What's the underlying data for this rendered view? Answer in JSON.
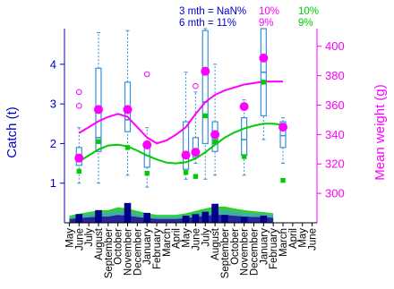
{
  "header": {
    "row1": {
      "label": "3 mth = NaN%",
      "p1": "10%",
      "p2": "10%"
    },
    "row2": {
      "label": "6 mth = 11%",
      "p1": "9%",
      "p2": "9%"
    }
  },
  "colors": {
    "blue": "#0000cc",
    "magenta": "#ff00ff",
    "green": "#00cc00",
    "box": "#3a8fd6",
    "navy": "#00008b",
    "teal": "#20a090"
  },
  "chart_data": {
    "type": "box+line",
    "x_labels": [
      "May",
      "June",
      "July",
      "August",
      "September",
      "October",
      "November",
      "December",
      "January",
      "February",
      "March",
      "April",
      "May",
      "June",
      "July",
      "August",
      "September",
      "October",
      "November",
      "December",
      "January",
      "February",
      "March",
      "April",
      "May",
      "June"
    ],
    "y_left": {
      "label": "Catch (t)",
      "ticks": [
        1,
        2,
        3,
        4
      ],
      "range": [
        0,
        4.9
      ]
    },
    "y_right": {
      "label": "Mean weight (g)",
      "ticks": [
        300,
        320,
        340,
        360,
        380,
        400
      ],
      "range": [
        280,
        412
      ]
    },
    "boxes": [
      {
        "x": 1,
        "lower_whisker": 1.0,
        "q1": 1.45,
        "median": 1.62,
        "q3": 1.9,
        "upper_whisker": 2.4
      },
      {
        "x": 3,
        "lower_whisker": 1.0,
        "q1": 1.8,
        "median": 2.15,
        "q3": 3.9,
        "upper_whisker": 4.8
      },
      {
        "x": 6,
        "lower_whisker": 1.2,
        "q1": 2.3,
        "median": 2.6,
        "q3": 3.55,
        "upper_whisker": 4.85
      },
      {
        "x": 8,
        "lower_whisker": 0.9,
        "q1": 1.4,
        "median": 1.7,
        "q3": 1.95,
        "upper_whisker": 2.4
      },
      {
        "x": 12,
        "lower_whisker": 1.1,
        "q1": 1.35,
        "median": 1.72,
        "q3": 2.55,
        "upper_whisker": 3.8
      },
      {
        "x": 13,
        "lower_whisker": 1.5,
        "q1": 1.65,
        "median": 1.85,
        "q3": 2.15,
        "upper_whisker": 3.3
      },
      {
        "x": 14,
        "lower_whisker": 1.1,
        "q1": 2.0,
        "median": 3.05,
        "q3": 4.85,
        "upper_whisker": 4.9
      },
      {
        "x": 15,
        "lower_whisker": 1.2,
        "q1": 1.8,
        "median": 2.0,
        "q3": 2.55,
        "upper_whisker": 4.0
      },
      {
        "x": 18,
        "lower_whisker": 1.2,
        "q1": 1.7,
        "median": 2.1,
        "q3": 2.65,
        "upper_whisker": 3.1
      },
      {
        "x": 20,
        "lower_whisker": 2.1,
        "q1": 2.7,
        "median": 3.8,
        "q3": 4.9,
        "upper_whisker": 4.9
      },
      {
        "x": 22,
        "lower_whisker": 1.5,
        "q1": 1.9,
        "median": 2.2,
        "q3": 2.55,
        "upper_whisker": 2.65
      }
    ],
    "outliers": [
      {
        "x": 1,
        "y": 3.3
      },
      {
        "x": 1,
        "y": 2.95
      },
      {
        "x": 8,
        "y": 3.75
      },
      {
        "x": 13,
        "y": 3.45
      }
    ],
    "mean_weight_points": [
      {
        "x": 1,
        "y": 324
      },
      {
        "x": 3,
        "y": 357
      },
      {
        "x": 6,
        "y": 357
      },
      {
        "x": 8,
        "y": 333
      },
      {
        "x": 12,
        "y": 326
      },
      {
        "x": 13,
        "y": 328
      },
      {
        "x": 14,
        "y": 383
      },
      {
        "x": 15,
        "y": 340
      },
      {
        "x": 18,
        "y": 359
      },
      {
        "x": 20,
        "y": 392
      },
      {
        "x": 22,
        "y": 345
      }
    ],
    "green_points": [
      {
        "x": 1,
        "y": 1.3
      },
      {
        "x": 3,
        "y": 2.05
      },
      {
        "x": 6,
        "y": 1.9
      },
      {
        "x": 8,
        "y": 1.25
      },
      {
        "x": 12,
        "y": 1.27
      },
      {
        "x": 13,
        "y": 1.17
      },
      {
        "x": 14,
        "y": 2.7
      },
      {
        "x": 15,
        "y": 2.05
      },
      {
        "x": 18,
        "y": 1.67
      },
      {
        "x": 20,
        "y": 3.55
      },
      {
        "x": 22,
        "y": 1.07
      }
    ],
    "mean_weight_trend": [
      {
        "x": 1,
        "y": 341
      },
      {
        "x": 2,
        "y": 345
      },
      {
        "x": 3,
        "y": 349
      },
      {
        "x": 4,
        "y": 352
      },
      {
        "x": 5,
        "y": 354
      },
      {
        "x": 6,
        "y": 352
      },
      {
        "x": 7,
        "y": 345
      },
      {
        "x": 8,
        "y": 338
      },
      {
        "x": 9,
        "y": 334
      },
      {
        "x": 10,
        "y": 336
      },
      {
        "x": 11,
        "y": 340
      },
      {
        "x": 12,
        "y": 345
      },
      {
        "x": 13,
        "y": 354
      },
      {
        "x": 14,
        "y": 362
      },
      {
        "x": 15,
        "y": 367
      },
      {
        "x": 16,
        "y": 370
      },
      {
        "x": 17,
        "y": 372
      },
      {
        "x": 18,
        "y": 374
      },
      {
        "x": 19,
        "y": 375
      },
      {
        "x": 20,
        "y": 376
      },
      {
        "x": 21,
        "y": 376
      },
      {
        "x": 22,
        "y": 376
      }
    ],
    "green_trend": [
      {
        "x": 1,
        "y": 1.55
      },
      {
        "x": 2,
        "y": 1.7
      },
      {
        "x": 3,
        "y": 1.85
      },
      {
        "x": 4,
        "y": 1.95
      },
      {
        "x": 5,
        "y": 1.97
      },
      {
        "x": 6,
        "y": 1.93
      },
      {
        "x": 7,
        "y": 1.82
      },
      {
        "x": 8,
        "y": 1.7
      },
      {
        "x": 9,
        "y": 1.6
      },
      {
        "x": 10,
        "y": 1.52
      },
      {
        "x": 11,
        "y": 1.5
      },
      {
        "x": 12,
        "y": 1.53
      },
      {
        "x": 13,
        "y": 1.62
      },
      {
        "x": 14,
        "y": 1.78
      },
      {
        "x": 15,
        "y": 1.97
      },
      {
        "x": 16,
        "y": 2.15
      },
      {
        "x": 17,
        "y": 2.28
      },
      {
        "x": 18,
        "y": 2.38
      },
      {
        "x": 19,
        "y": 2.45
      },
      {
        "x": 20,
        "y": 2.5
      },
      {
        "x": 21,
        "y": 2.5
      },
      {
        "x": 22,
        "y": 2.47
      }
    ],
    "catch_bars": [
      {
        "x": 1,
        "y": 0.22
      },
      {
        "x": 3,
        "y": 0.32
      },
      {
        "x": 6,
        "y": 0.5
      },
      {
        "x": 8,
        "y": 0.25
      },
      {
        "x": 12,
        "y": 0.18
      },
      {
        "x": 13,
        "y": 0.22
      },
      {
        "x": 14,
        "y": 0.28
      },
      {
        "x": 15,
        "y": 0.48
      },
      {
        "x": 16,
        "y": 0.2
      },
      {
        "x": 18,
        "y": 0.15
      },
      {
        "x": 20,
        "y": 0.18
      }
    ],
    "bottom_bands": [
      {
        "name": "navy",
        "values": [
          0.1,
          0.12,
          0.14,
          0.16,
          0.16,
          0.2,
          0.18,
          0.15,
          0.12,
          0.1,
          0.1,
          0.1,
          0.12,
          0.15,
          0.18,
          0.2,
          0.2,
          0.18,
          0.16,
          0.15,
          0.14,
          0.13
        ]
      },
      {
        "name": "teal",
        "values": [
          0.05,
          0.07,
          0.08,
          0.09,
          0.1,
          0.12,
          0.11,
          0.09,
          0.07,
          0.06,
          0.06,
          0.06,
          0.07,
          0.09,
          0.11,
          0.13,
          0.13,
          0.11,
          0.1,
          0.09,
          0.08,
          0.07
        ]
      },
      {
        "name": "green",
        "values": [
          0.03,
          0.04,
          0.05,
          0.06,
          0.06,
          0.07,
          0.07,
          0.06,
          0.05,
          0.04,
          0.04,
          0.04,
          0.05,
          0.06,
          0.07,
          0.08,
          0.08,
          0.07,
          0.06,
          0.05,
          0.05,
          0.04
        ]
      }
    ]
  }
}
